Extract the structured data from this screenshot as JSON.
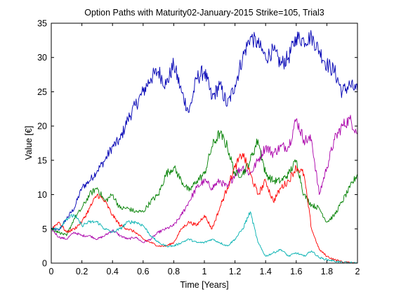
{
  "chart_data": {
    "type": "line",
    "title": "Option Paths with Maturity02-January-2015 Strike=105, Trial3",
    "xlabel": "Time [Years]",
    "ylabel": "Value [€]",
    "xlim": [
      0,
      2
    ],
    "ylim": [
      0,
      35
    ],
    "xticks": [
      0,
      0.2,
      0.4,
      0.6,
      0.8,
      1,
      1.2,
      1.4,
      1.6,
      1.8,
      2
    ],
    "xtick_labels": [
      "0",
      "0.2",
      "0.4",
      "0.6",
      "0.8",
      "1",
      "1.2",
      "1.4",
      "1.6",
      "1.8",
      "2"
    ],
    "yticks": [
      0,
      5,
      10,
      15,
      20,
      25,
      30,
      35
    ],
    "ytick_labels": [
      "0",
      "5",
      "10",
      "15",
      "20",
      "25",
      "30",
      "35"
    ],
    "grid": false,
    "legend": "none",
    "series": [
      {
        "color": "#0000b4",
        "x": [
          0,
          0.05,
          0.1,
          0.15,
          0.2,
          0.25,
          0.3,
          0.35,
          0.4,
          0.45,
          0.5,
          0.55,
          0.6,
          0.65,
          0.7,
          0.75,
          0.8,
          0.85,
          0.9,
          0.95,
          1.0,
          1.05,
          1.1,
          1.15,
          1.2,
          1.25,
          1.3,
          1.35,
          1.4,
          1.45,
          1.5,
          1.55,
          1.6,
          1.65,
          1.7,
          1.75,
          1.8,
          1.85,
          1.9,
          1.95,
          2.0
        ],
        "values": [
          5,
          4.8,
          6.5,
          8,
          11,
          12,
          13.5,
          15,
          17,
          18,
          21,
          23,
          25,
          27,
          28,
          26,
          29,
          25,
          22,
          27,
          28,
          24,
          26,
          23,
          26,
          30,
          33,
          32,
          30,
          31,
          29,
          30,
          33,
          32.5,
          33,
          31,
          29,
          28,
          25,
          26,
          25
        ]
      },
      {
        "color": "#aa00aa",
        "x": [
          0,
          0.05,
          0.1,
          0.15,
          0.2,
          0.25,
          0.3,
          0.35,
          0.4,
          0.45,
          0.5,
          0.55,
          0.6,
          0.65,
          0.7,
          0.75,
          0.8,
          0.85,
          0.9,
          0.95,
          1.0,
          1.05,
          1.1,
          1.15,
          1.2,
          1.25,
          1.3,
          1.35,
          1.4,
          1.45,
          1.5,
          1.55,
          1.6,
          1.65,
          1.7,
          1.75,
          1.8,
          1.85,
          1.9,
          1.95,
          2.0
        ],
        "values": [
          5,
          3.8,
          3.5,
          4.5,
          4,
          4,
          3.5,
          4,
          4.8,
          4,
          3.5,
          3.8,
          3,
          3.5,
          4.5,
          5,
          5.5,
          7,
          9,
          11,
          12,
          11,
          12,
          11,
          13,
          14,
          13,
          15,
          17,
          16,
          17,
          17,
          21,
          18,
          18,
          10,
          14,
          18,
          20,
          21,
          19
        ]
      },
      {
        "color": "#008000",
        "x": [
          0,
          0.05,
          0.1,
          0.15,
          0.2,
          0.25,
          0.3,
          0.35,
          0.4,
          0.45,
          0.5,
          0.55,
          0.6,
          0.65,
          0.7,
          0.75,
          0.8,
          0.85,
          0.9,
          0.95,
          1.0,
          1.05,
          1.1,
          1.15,
          1.2,
          1.25,
          1.3,
          1.35,
          1.4,
          1.45,
          1.5,
          1.55,
          1.6,
          1.65,
          1.7,
          1.75,
          1.8,
          1.85,
          1.9,
          1.95,
          2.0
        ],
        "values": [
          5,
          4.5,
          4,
          6.5,
          8,
          10,
          11,
          9,
          10,
          8,
          8,
          7.5,
          7.5,
          9,
          10,
          13,
          14,
          12,
          10.5,
          12,
          13,
          17,
          19,
          17,
          13,
          13,
          15,
          18,
          13,
          12,
          12,
          13,
          15,
          10,
          8.5,
          8,
          6,
          7,
          9,
          11,
          13
        ]
      },
      {
        "color": "#ff0000",
        "x": [
          0,
          0.05,
          0.1,
          0.15,
          0.2,
          0.25,
          0.3,
          0.35,
          0.4,
          0.45,
          0.5,
          0.55,
          0.6,
          0.65,
          0.7,
          0.75,
          0.8,
          0.85,
          0.9,
          0.95,
          1.0,
          1.05,
          1.1,
          1.15,
          1.2,
          1.25,
          1.3,
          1.35,
          1.4,
          1.45,
          1.5,
          1.55,
          1.6,
          1.65,
          1.7,
          1.75,
          1.8,
          1.85,
          1.9,
          1.95,
          2.0
        ],
        "values": [
          5,
          6,
          4.5,
          5,
          6,
          8,
          10,
          9,
          7,
          5.5,
          5,
          4.5,
          3.5,
          3,
          2.5,
          2.5,
          3,
          5,
          6,
          5.5,
          7,
          5,
          8,
          11,
          14,
          16,
          13,
          10,
          12,
          9,
          11,
          12,
          14,
          13,
          5,
          2,
          1,
          0.5,
          0.2,
          0.05,
          0
        ]
      },
      {
        "color": "#00b0b0",
        "x": [
          0,
          0.05,
          0.1,
          0.15,
          0.2,
          0.25,
          0.3,
          0.35,
          0.4,
          0.45,
          0.5,
          0.55,
          0.6,
          0.65,
          0.7,
          0.75,
          0.8,
          0.85,
          0.9,
          0.95,
          1.0,
          1.05,
          1.1,
          1.15,
          1.2,
          1.25,
          1.3,
          1.35,
          1.4,
          1.45,
          1.5,
          1.55,
          1.6,
          1.65,
          1.7,
          1.75,
          1.8,
          1.85,
          1.9,
          1.95,
          2.0
        ],
        "values": [
          5,
          5,
          6.5,
          7,
          5.5,
          6,
          6,
          5,
          4.5,
          5,
          6,
          6,
          5.5,
          4,
          3,
          2.5,
          2.5,
          3,
          3.5,
          3,
          3,
          3.5,
          3,
          2.5,
          3.5,
          5,
          7.5,
          3,
          1,
          1.5,
          2,
          1,
          1.5,
          1,
          1.8,
          0.8,
          0.5,
          0.3,
          0.1,
          0.05,
          0
        ]
      }
    ]
  }
}
